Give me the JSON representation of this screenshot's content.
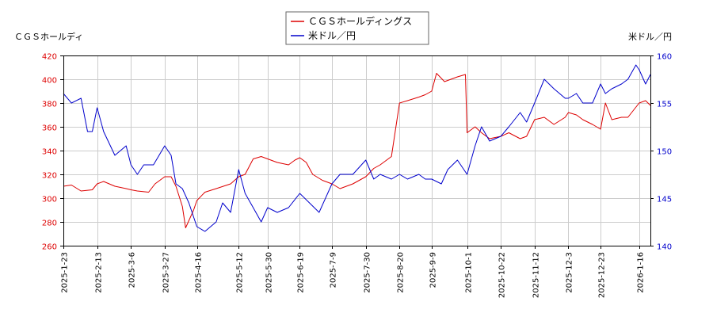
{
  "chart_data": {
    "type": "line",
    "y1label": "ＣＧＳホールディ",
    "y2label": "米ドル／円",
    "y1lim": [
      260,
      420
    ],
    "y1ticks": [
      260,
      280,
      300,
      320,
      340,
      360,
      380,
      400,
      420
    ],
    "y2lim": [
      140,
      160
    ],
    "y2ticks": [
      140,
      145,
      150,
      155,
      160
    ],
    "xlim": [
      "2025-01-23",
      "2026-01-23"
    ],
    "xticks": [
      "2025-1-23",
      "2025-2-13",
      "2025-3-6",
      "2025-3-27",
      "2025-4-16",
      "2025-5-12",
      "2025-5-30",
      "2025-6-19",
      "2025-7-9",
      "2025-7-30",
      "2025-8-20",
      "2025-9-9",
      "2025-10-1",
      "2025-10-22",
      "2025-11-12",
      "2025-12-3",
      "2025-12-23",
      "2026-1-16"
    ],
    "grid": true,
    "legend_position": "top-center",
    "series": [
      {
        "name": "ＣＧＳホールディングス",
        "axis": "left",
        "color": "#dd0000",
        "points": [
          [
            "2025-01-23",
            310
          ],
          [
            "2025-01-28",
            311
          ],
          [
            "2025-02-03",
            306
          ],
          [
            "2025-02-10",
            307
          ],
          [
            "2025-02-13",
            312
          ],
          [
            "2025-02-17",
            314
          ],
          [
            "2025-02-24",
            310
          ],
          [
            "2025-03-03",
            308
          ],
          [
            "2025-03-06",
            307
          ],
          [
            "2025-03-10",
            306
          ],
          [
            "2025-03-17",
            305
          ],
          [
            "2025-03-21",
            312
          ],
          [
            "2025-03-27",
            318
          ],
          [
            "2025-03-31",
            318
          ],
          [
            "2025-04-03",
            310
          ],
          [
            "2025-04-07",
            293
          ],
          [
            "2025-04-09",
            275
          ],
          [
            "2025-04-14",
            290
          ],
          [
            "2025-04-16",
            298
          ],
          [
            "2025-04-21",
            305
          ],
          [
            "2025-04-28",
            308
          ],
          [
            "2025-05-07",
            312
          ],
          [
            "2025-05-12",
            318
          ],
          [
            "2025-05-16",
            320
          ],
          [
            "2025-05-21",
            333
          ],
          [
            "2025-05-26",
            335
          ],
          [
            "2025-05-30",
            333
          ],
          [
            "2025-06-05",
            330
          ],
          [
            "2025-06-12",
            328
          ],
          [
            "2025-06-16",
            332
          ],
          [
            "2025-06-19",
            334
          ],
          [
            "2025-06-23",
            330
          ],
          [
            "2025-06-27",
            320
          ],
          [
            "2025-07-03",
            315
          ],
          [
            "2025-07-09",
            312
          ],
          [
            "2025-07-14",
            308
          ],
          [
            "2025-07-22",
            312
          ],
          [
            "2025-07-30",
            318
          ],
          [
            "2025-08-04",
            325
          ],
          [
            "2025-08-08",
            328
          ],
          [
            "2025-08-15",
            335
          ],
          [
            "2025-08-20",
            380
          ],
          [
            "2025-08-25",
            382
          ],
          [
            "2025-09-01",
            385
          ],
          [
            "2025-09-05",
            387
          ],
          [
            "2025-09-09",
            390
          ],
          [
            "2025-09-12",
            405
          ],
          [
            "2025-09-17",
            398
          ],
          [
            "2025-09-25",
            402
          ],
          [
            "2025-09-30",
            404
          ],
          [
            "2025-10-01",
            355
          ],
          [
            "2025-10-06",
            360
          ],
          [
            "2025-10-10",
            355
          ],
          [
            "2025-10-15",
            350
          ],
          [
            "2025-10-22",
            352
          ],
          [
            "2025-10-27",
            355
          ],
          [
            "2025-11-03",
            350
          ],
          [
            "2025-11-07",
            352
          ],
          [
            "2025-11-12",
            366
          ],
          [
            "2025-11-18",
            368
          ],
          [
            "2025-11-24",
            362
          ],
          [
            "2025-12-01",
            368
          ],
          [
            "2025-12-03",
            372
          ],
          [
            "2025-12-08",
            370
          ],
          [
            "2025-12-12",
            366
          ],
          [
            "2025-12-18",
            362
          ],
          [
            "2025-12-23",
            358
          ],
          [
            "2025-12-26",
            380
          ],
          [
            "2025-12-30",
            366
          ],
          [
            "2026-01-05",
            368
          ],
          [
            "2026-01-09",
            368
          ],
          [
            "2026-01-16",
            380
          ],
          [
            "2026-01-20",
            382
          ],
          [
            "2026-01-23",
            378
          ]
        ]
      },
      {
        "name": "米ドル／円",
        "axis": "right",
        "color": "#0000cc",
        "points": [
          [
            "2025-01-23",
            156
          ],
          [
            "2025-01-28",
            155
          ],
          [
            "2025-02-03",
            155.5
          ],
          [
            "2025-02-07",
            152
          ],
          [
            "2025-02-10",
            152
          ],
          [
            "2025-02-13",
            154.5
          ],
          [
            "2025-02-17",
            152
          ],
          [
            "2025-02-24",
            149.5
          ],
          [
            "2025-03-03",
            150.5
          ],
          [
            "2025-03-06",
            148.5
          ],
          [
            "2025-03-10",
            147.5
          ],
          [
            "2025-03-14",
            148.5
          ],
          [
            "2025-03-20",
            148.5
          ],
          [
            "2025-03-27",
            150.5
          ],
          [
            "2025-03-31",
            149.5
          ],
          [
            "2025-04-03",
            146.5
          ],
          [
            "2025-04-07",
            146
          ],
          [
            "2025-04-11",
            144.5
          ],
          [
            "2025-04-16",
            142
          ],
          [
            "2025-04-21",
            141.5
          ],
          [
            "2025-04-28",
            142.5
          ],
          [
            "2025-05-02",
            144.5
          ],
          [
            "2025-05-07",
            143.5
          ],
          [
            "2025-05-12",
            148
          ],
          [
            "2025-05-16",
            145.5
          ],
          [
            "2025-05-21",
            144
          ],
          [
            "2025-05-26",
            142.5
          ],
          [
            "2025-05-30",
            144
          ],
          [
            "2025-06-05",
            143.5
          ],
          [
            "2025-06-12",
            144
          ],
          [
            "2025-06-19",
            145.5
          ],
          [
            "2025-06-25",
            144.5
          ],
          [
            "2025-07-01",
            143.5
          ],
          [
            "2025-07-09",
            146.5
          ],
          [
            "2025-07-14",
            147.5
          ],
          [
            "2025-07-22",
            147.5
          ],
          [
            "2025-07-30",
            149
          ],
          [
            "2025-08-04",
            147
          ],
          [
            "2025-08-08",
            147.5
          ],
          [
            "2025-08-15",
            147
          ],
          [
            "2025-08-20",
            147.5
          ],
          [
            "2025-08-25",
            147
          ],
          [
            "2025-09-01",
            147.5
          ],
          [
            "2025-09-05",
            147
          ],
          [
            "2025-09-09",
            147
          ],
          [
            "2025-09-15",
            146.5
          ],
          [
            "2025-09-19",
            148
          ],
          [
            "2025-09-25",
            149
          ],
          [
            "2025-10-01",
            147.5
          ],
          [
            "2025-10-06",
            150.5
          ],
          [
            "2025-10-10",
            152.5
          ],
          [
            "2025-10-15",
            151
          ],
          [
            "2025-10-22",
            151.5
          ],
          [
            "2025-10-27",
            152.5
          ],
          [
            "2025-11-03",
            154
          ],
          [
            "2025-11-07",
            153
          ],
          [
            "2025-11-12",
            155
          ],
          [
            "2025-11-18",
            157.5
          ],
          [
            "2025-11-24",
            156.5
          ],
          [
            "2025-12-01",
            155.5
          ],
          [
            "2025-12-03",
            155.5
          ],
          [
            "2025-12-08",
            156
          ],
          [
            "2025-12-12",
            155
          ],
          [
            "2025-12-18",
            155
          ],
          [
            "2025-12-23",
            157
          ],
          [
            "2025-12-26",
            156
          ],
          [
            "2025-12-30",
            156.5
          ],
          [
            "2026-01-05",
            157
          ],
          [
            "2026-01-09",
            157.5
          ],
          [
            "2026-01-14",
            159
          ],
          [
            "2026-01-16",
            158.5
          ],
          [
            "2026-01-20",
            157
          ],
          [
            "2026-01-23",
            158
          ]
        ]
      }
    ]
  }
}
